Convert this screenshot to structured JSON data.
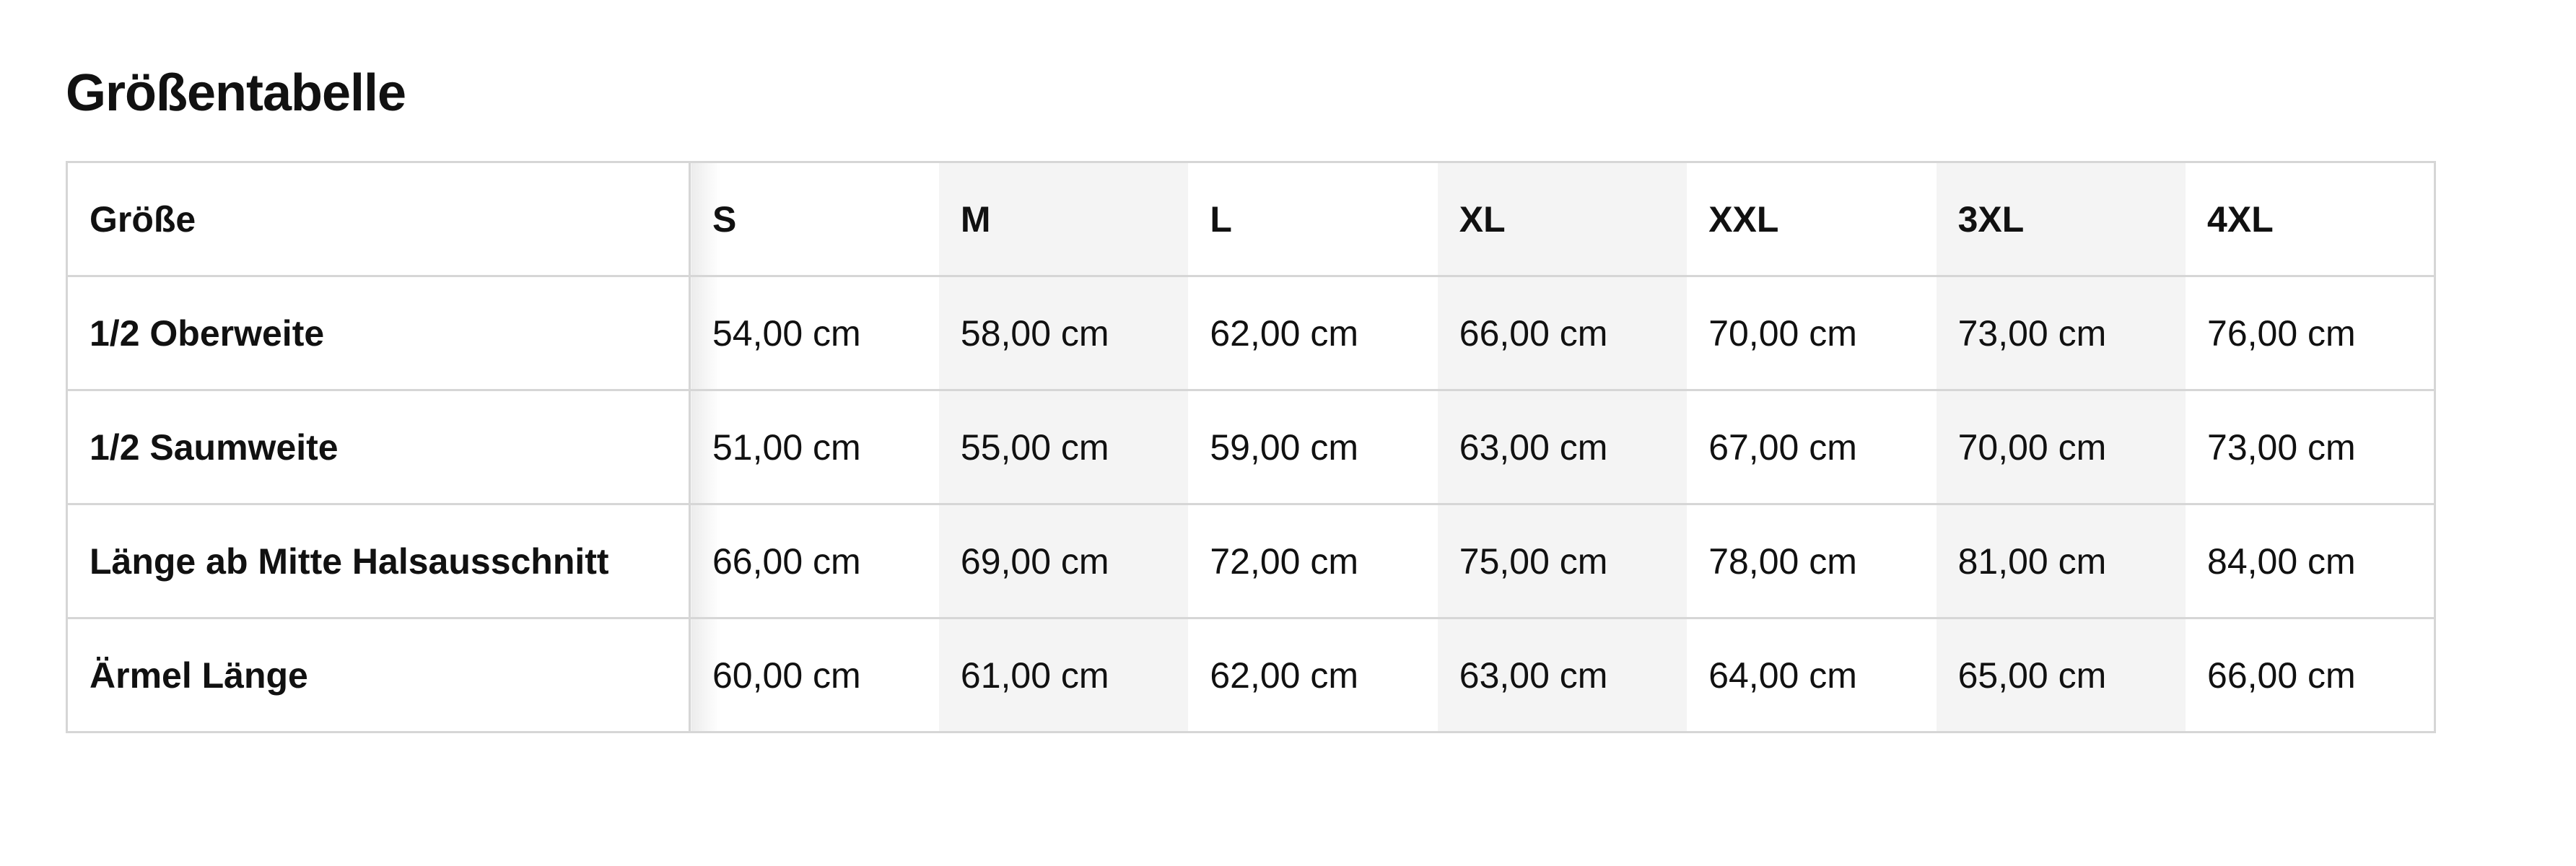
{
  "title": "Größentabelle",
  "table": {
    "header_label": "Größe",
    "sizes": [
      "S",
      "M",
      "L",
      "XL",
      "XXL",
      "3XL",
      "4XL"
    ],
    "rows": [
      {
        "label": "1/2 Oberweite",
        "values": [
          "54,00 cm",
          "58,00 cm",
          "62,00 cm",
          "66,00 cm",
          "70,00 cm",
          "73,00 cm",
          "76,00 cm"
        ]
      },
      {
        "label": "1/2 Saumweite",
        "values": [
          "51,00 cm",
          "55,00 cm",
          "59,00 cm",
          "63,00 cm",
          "67,00 cm",
          "70,00 cm",
          "73,00 cm"
        ]
      },
      {
        "label": "Länge ab Mitte Halsausschnitt",
        "values": [
          "66,00 cm",
          "69,00 cm",
          "72,00 cm",
          "75,00 cm",
          "78,00 cm",
          "81,00 cm",
          "84,00 cm"
        ]
      },
      {
        "label": "Ärmel Länge",
        "values": [
          "60,00 cm",
          "61,00 cm",
          "62,00 cm",
          "63,00 cm",
          "64,00 cm",
          "65,00 cm",
          "66,00 cm"
        ]
      }
    ]
  },
  "colors": {
    "border": "#d6d6d6",
    "shaded_column": "#f4f4f4",
    "text": "#111111"
  }
}
